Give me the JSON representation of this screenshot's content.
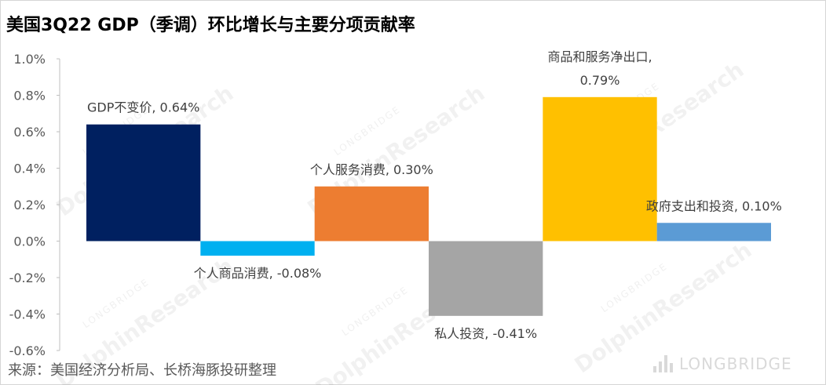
{
  "title": "美国3Q22 GDP（季调）环比增长与主要分项贡献率",
  "source": "来源：美国经济分析局、长桥海豚投研整理",
  "watermark": {
    "brand": "DolphinResearch",
    "sub": "LONGBRIDGE"
  },
  "brand_logo_text": "LONGBRIDGE",
  "chart_data": {
    "type": "bar",
    "categories": [
      "GDP不变价",
      "个人商品消费",
      "个人服务消费",
      "私人投资",
      "商品和服务净出口",
      "政府支出和投资"
    ],
    "values": [
      0.64,
      -0.08,
      0.3,
      -0.41,
      0.79,
      0.1
    ],
    "data_labels": [
      "GDP不变价, 0.64%",
      "个人商品消费, -0.08%",
      "个人服务消费, 0.30%",
      "私人投资, -0.41%",
      "商品和服务净出口,",
      "政府支出和投资, 0.10%"
    ],
    "data_labels_line2": [
      "",
      "",
      "",
      "",
      "0.79%",
      ""
    ],
    "colors": [
      "#002060",
      "#00b0f0",
      "#ed7d31",
      "#a5a5a5",
      "#ffc000",
      "#5b9bd5"
    ],
    "ylim": [
      -0.6,
      1.0
    ],
    "yticks": [
      1.0,
      0.8,
      0.6,
      0.4,
      0.2,
      0.0,
      -0.2,
      -0.4,
      -0.6
    ],
    "ytick_labels": [
      "1.0%",
      "0.8%",
      "0.6%",
      "0.4%",
      "0.2%",
      "0.0%",
      "-0.2%",
      "-0.4%",
      "-0.6%"
    ],
    "grid": false,
    "legend": "none"
  }
}
